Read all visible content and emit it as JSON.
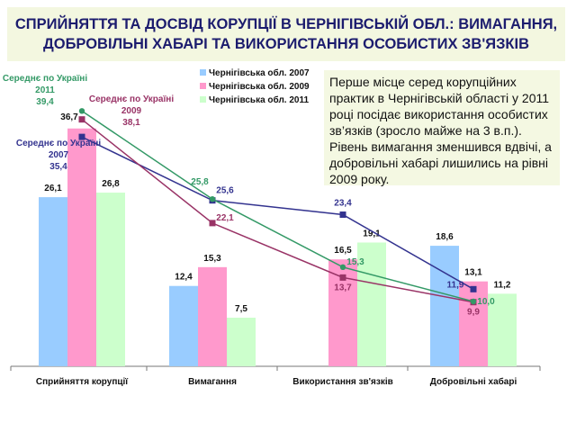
{
  "title": {
    "line1": "СПРИЙНЯТТЯ ТА ДОСВІД КОРУПЦІЇ В ЧЕРНІГІВСЬКІЙ ОБЛ.: ВИМАГАННЯ,",
    "line2": "ДОБРОВІЛЬНІ ХАБАРІ ТА ВИКОРИСТАННЯ ОСОБИСТИХ ЗВ'ЯЗКІВ"
  },
  "note": "Перше місце серед корупційних практик в Чернігівській області у 2011 році посідає використання особистих зв’язків (зросло майже на 3 в.п.). Рівень вимагання зменшився вдвічі, а  добровільні хабарі лишились на рівні 2009 року.",
  "chart_data": {
    "type": "bar+line",
    "categories": [
      "Сприйняття корупції",
      "Вимагання",
      "Використання зв'язків",
      "Добровільні хабарі"
    ],
    "bar_series": [
      {
        "name": "Чернігівська обл. 2007",
        "color": "#99ccff",
        "values": [
          26.1,
          12.4,
          null,
          18.6
        ],
        "labels": [
          "26,1",
          "12,4",
          "",
          "18,6"
        ]
      },
      {
        "name": "Чернігівська обл. 2009",
        "color": "#ff99cc",
        "values": [
          36.7,
          15.3,
          16.5,
          13.1
        ],
        "labels": [
          "36,7",
          "15,3",
          "16,5",
          "13,1"
        ]
      },
      {
        "name": "Чернігівська обл. 2011",
        "color": "#ccffcc",
        "values": [
          26.8,
          7.5,
          19.1,
          11.2
        ],
        "labels": [
          "26,8",
          "7,5",
          "19,1",
          "11,2"
        ]
      }
    ],
    "line_series": [
      {
        "name_lines": [
          "Середнє по Україні",
          "2007"
        ],
        "color": "#33338f",
        "values": [
          35.4,
          25.6,
          23.4,
          11.9
        ],
        "labels": [
          "35,4",
          "25,6",
          "23,4",
          "11,9"
        ]
      },
      {
        "name_lines": [
          "Середнє по Україні",
          "2009"
        ],
        "color": "#993366",
        "values": [
          38.1,
          22.1,
          13.7,
          9.9
        ],
        "labels": [
          "38,1",
          "22,1",
          "13,7",
          "9,9"
        ]
      },
      {
        "name_lines": [
          "Середнє по Україні",
          "2011"
        ],
        "color": "#339966",
        "values": [
          39.4,
          25.8,
          15.3,
          10.0
        ],
        "labels": [
          "39,4",
          "25,8",
          "15,3",
          "10,0"
        ]
      }
    ],
    "ylim": [
      0,
      45
    ],
    "grid": false,
    "legend": "top-center"
  }
}
